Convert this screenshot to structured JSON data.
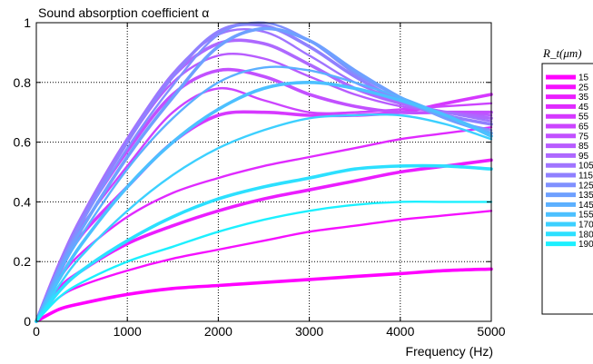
{
  "chart_data": {
    "type": "line",
    "title": "Sound absorption coefficient α",
    "xlabel": "Frequency (Hz)",
    "ylabel": "",
    "xlim": [
      0,
      5000
    ],
    "ylim": [
      0,
      1
    ],
    "xticks": [
      0,
      1000,
      2000,
      3000,
      4000,
      5000
    ],
    "yticks": [
      0,
      0.2,
      0.4,
      0.6,
      0.8,
      1
    ],
    "ytick_labels": [
      "0",
      "0.2",
      "0.4",
      "0.6",
      "0.8",
      "1"
    ],
    "grid": true,
    "legend_title": "R_t(μm)",
    "legend_position": "right-outside",
    "x": [
      0,
      250,
      500,
      1000,
      1500,
      2000,
      2500,
      3000,
      3500,
      4000,
      4500,
      5000
    ],
    "series": [
      {
        "name": "15",
        "color": "#ff00ff",
        "values": [
          0,
          0.04,
          0.06,
          0.09,
          0.11,
          0.12,
          0.13,
          0.14,
          0.15,
          0.16,
          0.17,
          0.175
        ]
      },
      {
        "name": "25",
        "color": "#f510ff",
        "values": [
          0,
          0.08,
          0.12,
          0.17,
          0.21,
          0.24,
          0.27,
          0.3,
          0.32,
          0.34,
          0.355,
          0.37
        ]
      },
      {
        "name": "35",
        "color": "#eb1dff",
        "values": [
          0,
          0.11,
          0.17,
          0.26,
          0.32,
          0.37,
          0.41,
          0.44,
          0.47,
          0.5,
          0.52,
          0.54
        ]
      },
      {
        "name": "45",
        "color": "#e02aff",
        "values": [
          0,
          0.14,
          0.23,
          0.35,
          0.43,
          0.48,
          0.52,
          0.55,
          0.58,
          0.61,
          0.63,
          0.65
        ]
      },
      {
        "name": "55",
        "color": "#d638ff",
        "values": [
          0,
          0.16,
          0.29,
          0.45,
          0.6,
          0.69,
          0.7,
          0.69,
          0.69,
          0.7,
          0.73,
          0.76
        ]
      },
      {
        "name": "65",
        "color": "#cc44ff",
        "values": [
          0,
          0.18,
          0.32,
          0.52,
          0.7,
          0.78,
          0.74,
          0.7,
          0.7,
          0.71,
          0.72,
          0.73
        ]
      },
      {
        "name": "75",
        "color": "#c250ff",
        "values": [
          0,
          0.19,
          0.34,
          0.57,
          0.76,
          0.84,
          0.82,
          0.76,
          0.72,
          0.7,
          0.7,
          0.7
        ]
      },
      {
        "name": "85",
        "color": "#b85cff",
        "values": [
          0,
          0.19,
          0.35,
          0.6,
          0.8,
          0.89,
          0.88,
          0.82,
          0.76,
          0.72,
          0.7,
          0.69
        ]
      },
      {
        "name": "95",
        "color": "#ae68ff",
        "values": [
          0,
          0.19,
          0.35,
          0.61,
          0.82,
          0.93,
          0.93,
          0.86,
          0.78,
          0.73,
          0.7,
          0.68
        ]
      },
      {
        "name": "105",
        "color": "#a074ff",
        "values": [
          0,
          0.19,
          0.35,
          0.61,
          0.83,
          0.96,
          0.97,
          0.89,
          0.8,
          0.74,
          0.7,
          0.67
        ]
      },
      {
        "name": "115",
        "color": "#9080ff",
        "values": [
          0,
          0.18,
          0.34,
          0.6,
          0.82,
          0.97,
          0.99,
          0.92,
          0.82,
          0.74,
          0.69,
          0.66
        ]
      },
      {
        "name": "125",
        "color": "#8090ff",
        "values": [
          0,
          0.18,
          0.33,
          0.58,
          0.79,
          0.96,
          1.0,
          0.94,
          0.83,
          0.75,
          0.68,
          0.64
        ]
      },
      {
        "name": "135",
        "color": "#6ea0ff",
        "values": [
          0,
          0.17,
          0.31,
          0.55,
          0.75,
          0.92,
          0.98,
          0.94,
          0.84,
          0.75,
          0.68,
          0.63
        ]
      },
      {
        "name": "145",
        "color": "#5cb0ff",
        "values": [
          0,
          0.16,
          0.29,
          0.51,
          0.68,
          0.8,
          0.85,
          0.84,
          0.8,
          0.75,
          0.69,
          0.63
        ]
      },
      {
        "name": "155",
        "color": "#4cc0ff",
        "values": [
          0,
          0.14,
          0.26,
          0.45,
          0.6,
          0.71,
          0.78,
          0.8,
          0.78,
          0.74,
          0.69,
          0.62
        ]
      },
      {
        "name": "170",
        "color": "#3cd0ff",
        "values": [
          0,
          0.12,
          0.22,
          0.37,
          0.49,
          0.58,
          0.64,
          0.68,
          0.69,
          0.69,
          0.66,
          0.61
        ]
      },
      {
        "name": "180",
        "color": "#2ce0ff",
        "values": [
          0,
          0.1,
          0.17,
          0.27,
          0.35,
          0.41,
          0.45,
          0.48,
          0.51,
          0.52,
          0.52,
          0.51
        ]
      },
      {
        "name": "190",
        "color": "#1cf0ff",
        "values": [
          0,
          0.08,
          0.13,
          0.2,
          0.25,
          0.3,
          0.34,
          0.37,
          0.39,
          0.4,
          0.4,
          0.4
        ]
      }
    ]
  }
}
